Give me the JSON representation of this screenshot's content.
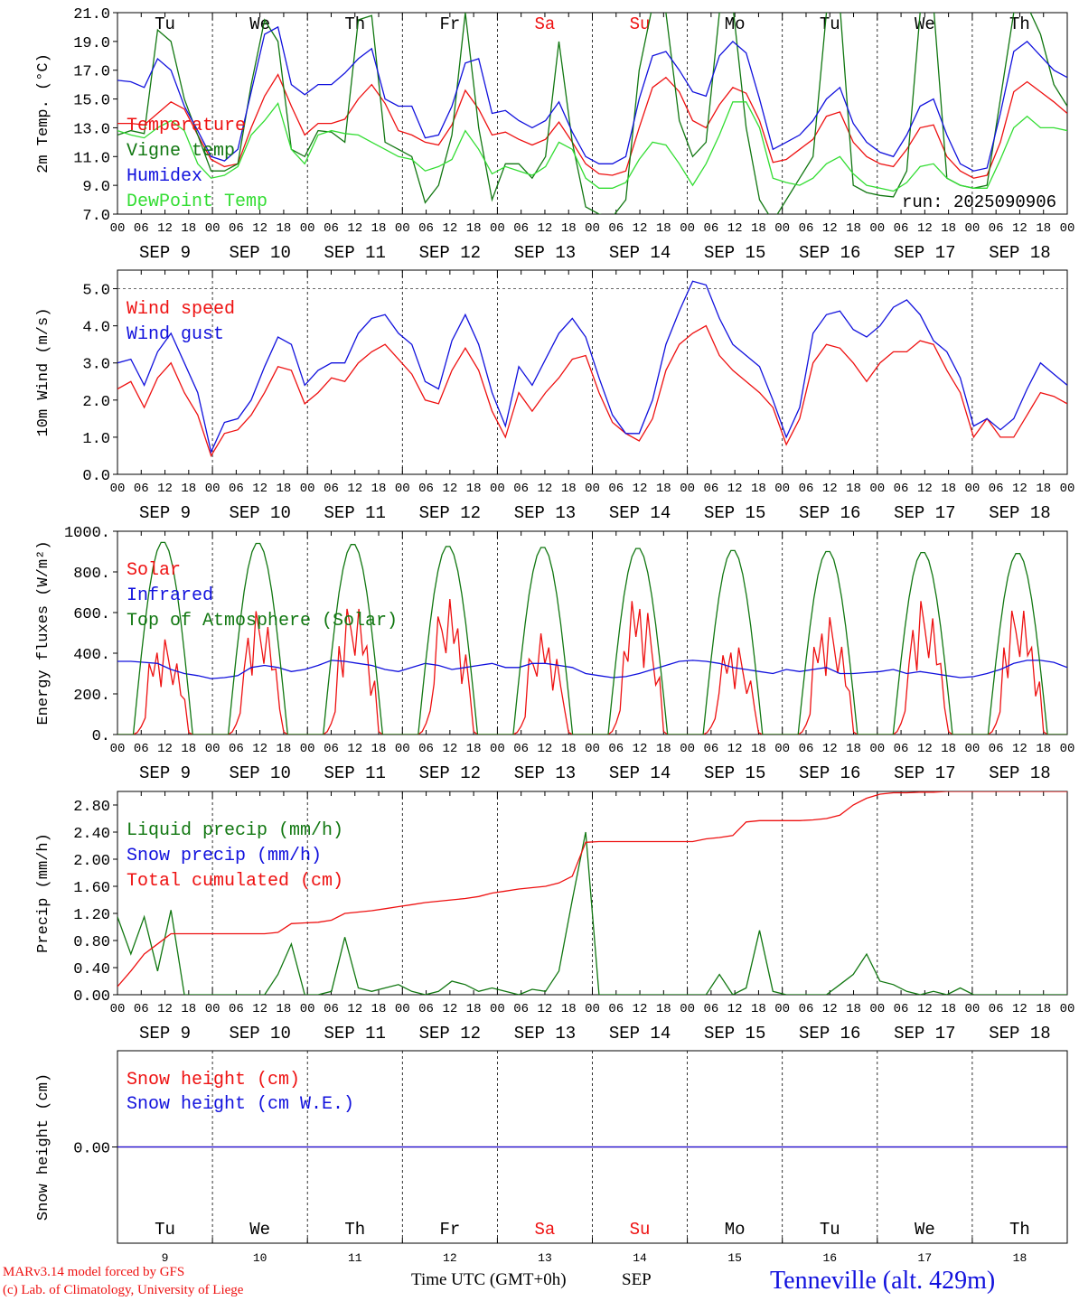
{
  "footer": {
    "credit1": "MARv3.14 model forced by GFS",
    "credit2": "(c) Lab. of Climatology, University of Liege",
    "time_label": "Time UTC (GMT+0h)",
    "month": "SEP",
    "station": "Tenneville (alt. 429m)"
  },
  "colors": {
    "red": "#ee1111",
    "blue": "#1111dd",
    "green": "#117711",
    "lightgreen": "#33dd33"
  },
  "chart_data": [
    {
      "id": "temperature",
      "type": "line",
      "ylabel": "2m Temp. (°C)",
      "ylim": [
        7,
        21
      ],
      "yticks": [
        "7.0",
        "9.0",
        "11.0",
        "13.0",
        "15.0",
        "17.0",
        "19.0",
        "21.0"
      ],
      "run_label": "run: 2025090906",
      "day_names": [
        "Tu",
        "We",
        "Th",
        "Fr",
        "Sa",
        "Su",
        "Mo",
        "Tu",
        "We",
        "Th"
      ],
      "day_name_colors": [
        "#000000",
        "#000000",
        "#000000",
        "#000000",
        "#ee1111",
        "#ee1111",
        "#000000",
        "#000000",
        "#000000",
        "#000000"
      ],
      "x_hour_ticks": [
        "00",
        "06",
        "12",
        "18"
      ],
      "x_day_labels": [
        "SEP  9",
        "SEP 10",
        "SEP 11",
        "SEP 12",
        "SEP 13",
        "SEP 14",
        "SEP 15",
        "SEP 16",
        "SEP 17",
        "SEP 18"
      ],
      "x_start": "2025-09-09 00:00",
      "x_step_hours": 3,
      "series": [
        {
          "name": "Temperature",
          "color": "#ee1111",
          "values": [
            13.3,
            13.3,
            13.2,
            14.0,
            14.8,
            14.3,
            12.5,
            10.8,
            10.3,
            10.5,
            13.0,
            15.2,
            16.7,
            14.5,
            12.5,
            13.3,
            13.3,
            13.6,
            15.0,
            16.0,
            14.7,
            12.8,
            12.5,
            12.0,
            11.8,
            13.2,
            15.6,
            14.3,
            12.5,
            12.7,
            12.2,
            11.8,
            12.2,
            13.4,
            12.0,
            10.5,
            9.8,
            9.7,
            10.0,
            13.0,
            15.8,
            16.5,
            15.5,
            13.5,
            13.0,
            14.6,
            15.8,
            15.4,
            13.5,
            10.6,
            10.8,
            11.5,
            12.2,
            13.8,
            14.1,
            12.0,
            11.0,
            10.5,
            10.3,
            11.5,
            13.0,
            13.2,
            11.0,
            10.0,
            9.5,
            9.7,
            12.0,
            15.5,
            16.2,
            15.5,
            14.8,
            14.0
          ]
        },
        {
          "name": "Vigne temp",
          "color": "#117711",
          "values": [
            12.5,
            12.8,
            12.6,
            19.8,
            19.0,
            15.0,
            12.5,
            10.0,
            10.0,
            10.5,
            16.0,
            20.5,
            19.0,
            11.5,
            11.0,
            12.8,
            12.7,
            12.0,
            20.5,
            20.8,
            12.0,
            11.5,
            11.0,
            7.8,
            9.0,
            12.5,
            21.0,
            13.0,
            8.0,
            10.5,
            10.5,
            9.5,
            11.0,
            19.0,
            12.0,
            7.5,
            7.0,
            6.8,
            8.0,
            17.0,
            21.5,
            21.0,
            13.5,
            11.0,
            12.0,
            21.0,
            21.5,
            13.0,
            8.0,
            6.5,
            8.0,
            9.5,
            11.0,
            21.0,
            21.5,
            9.0,
            8.5,
            8.3,
            8.2,
            10.0,
            21.0,
            21.5,
            9.5,
            9.0,
            8.8,
            9.0,
            15.0,
            21.0,
            21.5,
            19.5,
            16.0,
            14.5
          ]
        },
        {
          "name": "Humidex",
          "color": "#1111dd",
          "values": [
            16.3,
            16.2,
            15.8,
            17.8,
            17.0,
            14.5,
            12.8,
            11.0,
            10.7,
            11.5,
            15.5,
            19.5,
            20.0,
            16.0,
            15.3,
            16.0,
            16.0,
            16.8,
            17.8,
            18.5,
            15.0,
            14.5,
            14.5,
            12.3,
            12.5,
            14.5,
            17.5,
            17.8,
            14.0,
            14.2,
            13.5,
            13.0,
            13.5,
            14.8,
            12.7,
            11.0,
            10.5,
            10.5,
            11.0,
            15.0,
            18.0,
            18.3,
            17.0,
            15.5,
            15.2,
            18.0,
            19.0,
            18.2,
            15.0,
            11.5,
            12.0,
            12.5,
            13.5,
            15.0,
            15.8,
            13.3,
            12.0,
            11.3,
            11.0,
            12.5,
            14.5,
            15.0,
            12.5,
            10.5,
            10.0,
            10.2,
            14.0,
            18.3,
            19.0,
            18.0,
            17.0,
            16.5
          ]
        },
        {
          "name": "DewPoint Temp",
          "color": "#33dd33",
          "values": [
            12.8,
            12.5,
            12.3,
            13.0,
            13.5,
            12.8,
            10.5,
            9.5,
            9.7,
            10.3,
            12.5,
            13.5,
            14.7,
            11.5,
            10.5,
            12.5,
            12.8,
            12.6,
            12.5,
            12.0,
            11.5,
            11.0,
            10.8,
            10.0,
            10.3,
            10.8,
            12.8,
            11.5,
            9.8,
            10.3,
            10.0,
            9.7,
            10.3,
            12.0,
            11.5,
            9.5,
            8.8,
            8.8,
            9.2,
            10.8,
            12.0,
            11.8,
            10.5,
            9.0,
            10.5,
            12.5,
            14.8,
            14.8,
            13.0,
            9.5,
            9.2,
            9.0,
            9.5,
            10.5,
            11.0,
            9.8,
            9.0,
            8.8,
            8.6,
            9.2,
            10.3,
            10.5,
            9.5,
            9.0,
            8.8,
            8.8,
            10.8,
            13.0,
            13.8,
            13.0,
            13.0,
            12.8
          ]
        }
      ]
    },
    {
      "id": "wind",
      "type": "line",
      "ylabel": "10m Wind (m/s)",
      "ylim": [
        0,
        5.5
      ],
      "yticks": [
        "0.0",
        "1.0",
        "2.0",
        "3.0",
        "4.0",
        "5.0"
      ],
      "hline": 5.0,
      "x_hour_ticks": [
        "00",
        "06",
        "12",
        "18"
      ],
      "x_day_labels": [
        "SEP  9",
        "SEP 10",
        "SEP 11",
        "SEP 12",
        "SEP 13",
        "SEP 14",
        "SEP 15",
        "SEP 16",
        "SEP 17",
        "SEP 18"
      ],
      "x_start": "2025-09-09 00:00",
      "x_step_hours": 3,
      "series": [
        {
          "name": "Wind speed",
          "color": "#ee1111",
          "values": [
            2.3,
            2.5,
            1.8,
            2.6,
            3.0,
            2.2,
            1.6,
            0.5,
            1.1,
            1.2,
            1.6,
            2.2,
            2.9,
            2.8,
            1.9,
            2.2,
            2.6,
            2.5,
            3.0,
            3.3,
            3.5,
            3.1,
            2.7,
            2.0,
            1.9,
            2.8,
            3.4,
            2.8,
            1.7,
            1.0,
            2.2,
            1.7,
            2.2,
            2.6,
            3.1,
            3.2,
            2.2,
            1.4,
            1.1,
            0.9,
            1.5,
            2.8,
            3.5,
            3.8,
            4.0,
            3.2,
            2.8,
            2.5,
            2.2,
            1.8,
            0.8,
            1.5,
            3.0,
            3.5,
            3.4,
            3.0,
            2.5,
            3.0,
            3.3,
            3.3,
            3.6,
            3.5,
            2.8,
            2.2,
            1.0,
            1.5,
            1.0,
            1.0,
            1.6,
            2.2,
            2.1,
            1.9
          ]
        },
        {
          "name": "Wind gust",
          "color": "#1111dd",
          "values": [
            3.0,
            3.1,
            2.4,
            3.3,
            3.8,
            3.0,
            2.2,
            0.6,
            1.4,
            1.5,
            2.0,
            2.9,
            3.7,
            3.5,
            2.4,
            2.8,
            3.0,
            3.0,
            3.8,
            4.2,
            4.3,
            3.8,
            3.5,
            2.5,
            2.3,
            3.6,
            4.3,
            3.5,
            2.2,
            1.3,
            2.9,
            2.4,
            3.1,
            3.8,
            4.2,
            3.7,
            2.6,
            1.6,
            1.1,
            1.1,
            2.0,
            3.5,
            4.4,
            5.2,
            5.1,
            4.2,
            3.5,
            3.2,
            2.9,
            2.0,
            1.0,
            1.8,
            3.8,
            4.3,
            4.4,
            3.9,
            3.7,
            4.0,
            4.5,
            4.7,
            4.3,
            3.6,
            3.3,
            2.6,
            1.3,
            1.5,
            1.2,
            1.5,
            2.3,
            3.0,
            2.7,
            2.4
          ]
        }
      ]
    },
    {
      "id": "energy",
      "type": "line",
      "ylabel": "Energy fluxes (W/m²)",
      "ylim": [
        0,
        1000
      ],
      "yticks": [
        "0.",
        "200.",
        "400.",
        "600.",
        "800.",
        "1000."
      ],
      "x_hour_ticks": [
        "00",
        "06",
        "12",
        "18"
      ],
      "x_day_labels": [
        "SEP  9",
        "SEP 10",
        "SEP 11",
        "SEP 12",
        "SEP 13",
        "SEP 14",
        "SEP 15",
        "SEP 16",
        "SEP 17",
        "SEP 18"
      ],
      "series": [
        {
          "name": "Solar",
          "color": "#ee1111",
          "peaks": [
            470,
            610,
            650,
            670,
            500,
            690,
            450,
            580,
            660,
            640
          ]
        },
        {
          "name": "Infrared",
          "color": "#1111dd",
          "values": [
            360,
            360,
            355,
            350,
            320,
            300,
            290,
            275,
            280,
            290,
            330,
            340,
            330,
            310,
            320,
            340,
            365,
            360,
            350,
            340,
            320,
            310,
            330,
            350,
            340,
            320,
            330,
            340,
            350,
            330,
            330,
            350,
            350,
            340,
            330,
            300,
            290,
            280,
            285,
            300,
            320,
            340,
            360,
            365,
            360,
            350,
            330,
            320,
            310,
            300,
            320,
            310,
            320,
            330,
            300,
            300,
            305,
            310,
            320,
            300,
            310,
            300,
            290,
            280,
            285,
            300,
            320,
            350,
            365,
            365,
            355,
            330
          ]
        },
        {
          "name": "Top of Atmosphere (Solar)",
          "color": "#117711",
          "peaks": [
            950,
            945,
            940,
            930,
            925,
            920,
            910,
            905,
            900,
            895
          ]
        }
      ]
    },
    {
      "id": "precip",
      "type": "line",
      "ylabel": "Precip (mm/h)",
      "ylim": [
        0,
        3.0
      ],
      "yticks": [
        "0.00",
        "0.40",
        "0.80",
        "1.20",
        "1.60",
        "2.00",
        "2.40",
        "2.80"
      ],
      "x_hour_ticks": [
        "00",
        "06",
        "12",
        "18"
      ],
      "x_day_labels": [
        "SEP  9",
        "SEP 10",
        "SEP 11",
        "SEP 12",
        "SEP 13",
        "SEP 14",
        "SEP 15",
        "SEP 16",
        "SEP 17",
        "SEP 18"
      ],
      "x_start": "2025-09-09 00:00",
      "x_step_hours": 3,
      "series": [
        {
          "name": "Liquid precip (mm/h)",
          "color": "#117711",
          "values": [
            1.15,
            0.6,
            1.15,
            0.35,
            1.25,
            0.0,
            0.0,
            0.0,
            0.0,
            0.0,
            0.0,
            0.0,
            0.3,
            0.75,
            0.0,
            0.0,
            0.05,
            0.85,
            0.1,
            0.05,
            0.1,
            0.15,
            0.05,
            0.0,
            0.05,
            0.2,
            0.15,
            0.05,
            0.1,
            0.05,
            0.0,
            0.08,
            0.05,
            0.35,
            1.4,
            2.4,
            0.0,
            0.0,
            0.0,
            0.0,
            0.0,
            0.0,
            0.0,
            0.0,
            0.0,
            0.3,
            0.0,
            0.1,
            0.95,
            0.05,
            0.0,
            0.0,
            0.0,
            0.0,
            0.15,
            0.3,
            0.6,
            0.2,
            0.15,
            0.05,
            0.0,
            0.05,
            0.0,
            0.1,
            0.0,
            0.0,
            0.0,
            0.0,
            0.0,
            0.0,
            0.0,
            0.0
          ]
        },
        {
          "name": "Snow precip (mm/h)",
          "color": "#1111dd",
          "values": []
        },
        {
          "name": "Total cumulated (cm)",
          "color": "#ee1111",
          "values": [
            0.12,
            0.35,
            0.6,
            0.75,
            0.9,
            0.9,
            0.9,
            0.9,
            0.9,
            0.9,
            0.9,
            0.9,
            0.92,
            1.05,
            1.06,
            1.07,
            1.1,
            1.2,
            1.22,
            1.24,
            1.27,
            1.3,
            1.33,
            1.36,
            1.38,
            1.4,
            1.42,
            1.45,
            1.5,
            1.53,
            1.56,
            1.58,
            1.6,
            1.65,
            1.75,
            2.25,
            2.26,
            2.26,
            2.26,
            2.26,
            2.26,
            2.26,
            2.26,
            2.26,
            2.3,
            2.32,
            2.35,
            2.55,
            2.57,
            2.57,
            2.57,
            2.57,
            2.58,
            2.6,
            2.65,
            2.8,
            2.9,
            2.96,
            2.98,
            2.98,
            2.99,
            2.99,
            3.0,
            3.0,
            3.0,
            3.0,
            3.0,
            3.0,
            3.0,
            3.0,
            3.0,
            3.0
          ]
        }
      ]
    },
    {
      "id": "snow",
      "type": "line",
      "ylabel": "Snow height (cm)",
      "ylim": [
        -1,
        1
      ],
      "yticks": [
        "0.00"
      ],
      "day_names": [
        "Tu",
        "We",
        "Th",
        "Fr",
        "Sa",
        "Su",
        "Mo",
        "Tu",
        "We",
        "Th"
      ],
      "day_name_colors": [
        "#000000",
        "#000000",
        "#000000",
        "#000000",
        "#ee1111",
        "#ee1111",
        "#000000",
        "#000000",
        "#000000",
        "#000000"
      ],
      "day_numbers": [
        "9",
        "10",
        "11",
        "12",
        "13",
        "14",
        "15",
        "16",
        "17",
        "18"
      ],
      "series": [
        {
          "name": "Snow height (cm)",
          "color": "#ee1111",
          "values": [
            0,
            0
          ]
        },
        {
          "name": "Snow height (cm W.E.)",
          "color": "#1111dd",
          "values": [
            0,
            0
          ]
        }
      ]
    }
  ]
}
